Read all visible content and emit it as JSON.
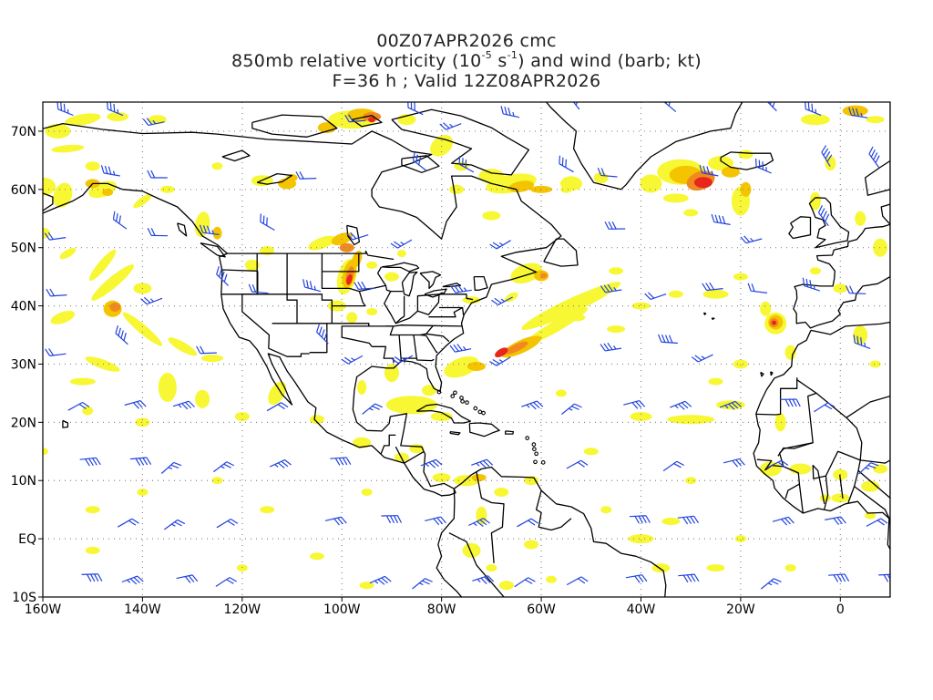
{
  "title": {
    "line1": "00Z07APR2026 cmc",
    "line2_prefix": "850mb relative vorticity (10",
    "line2_exp1": "-5",
    "line2_mid": " s",
    "line2_exp2": "-1",
    "line2_suffix": ") and wind (barb; kt)",
    "line3": "F=36 h ; Valid 12Z08APR2026"
  },
  "map": {
    "lon_range": [
      -160,
      10
    ],
    "lat_range": [
      -10,
      75
    ],
    "x_ticks": [
      "160W",
      "140W",
      "120W",
      "100W",
      "80W",
      "60W",
      "40W",
      "20W",
      "0"
    ],
    "y_ticks": [
      "70N",
      "60N",
      "50N",
      "40N",
      "30N",
      "20N",
      "10N",
      "EQ",
      "10S"
    ],
    "grid": true,
    "colors": {
      "coast": "#000000",
      "barb": "#2244dd",
      "vort_low": "#f7f733",
      "vort_mid": "#f5c400",
      "vort_high": "#f08a1e",
      "vort_max": "#e8261c",
      "grid": "#888888"
    }
  }
}
